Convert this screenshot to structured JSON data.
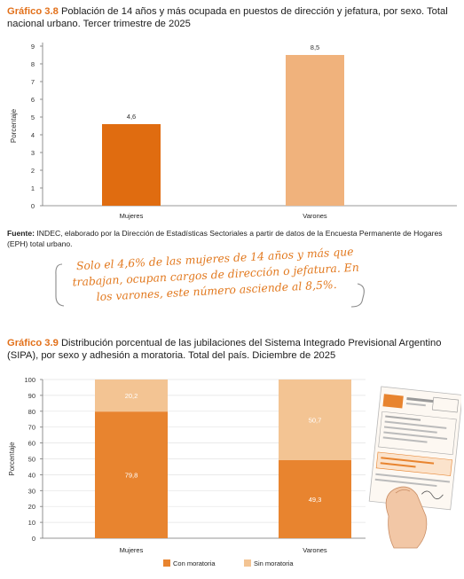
{
  "chart1": {
    "title_num": "Gráfico 3.8",
    "title_text": "Población de 14 años y más ocupada en puestos de dirección y jefatura, por sexo. Total nacional urbano. Tercer trimestre de 2025"
  },
  "source": {
    "label": "Fuente:",
    "text": "INDEC, elaborado por la Dirección de Estadísticas Sectoriales a partir de datos de la Encuesta Permanente de Hogares (EPH) total urbano."
  },
  "note": {
    "text": "Solo el 4,6% de las mujeres de 14 años y más que trabajan, ocupan cargos de dirección o jefatura. En los varones, este número asciende al 8,5%."
  },
  "chart2": {
    "title_num": "Gráfico 3.9",
    "title_text": "Distribución porcentual de las jubilaciones del Sistema Integrado Previsional Argentino (SIPA), por sexo y adhesión a moratoria. Total del país. Diciembre de 2025"
  },
  "colors": {
    "dark_orange": "#e06c10",
    "light_orange": "#f0b27c",
    "stack_dark": "#e8842f",
    "stack_light": "#f3c493",
    "accent": "#e2701a"
  },
  "chart_data": [
    {
      "type": "bar",
      "title": "Población de 14 años y más ocupada en puestos de dirección y jefatura, por sexo. Total nacional urbano. Tercer trimestre de 2025",
      "categories": [
        "Mujeres",
        "Varones"
      ],
      "values": [
        4.6,
        8.5
      ],
      "value_labels": [
        "4,6",
        "8,5"
      ],
      "xlabel": "",
      "ylabel": "Porcentaje",
      "ylim": [
        0,
        9
      ],
      "yticks": [
        0,
        1,
        2,
        3,
        4,
        5,
        6,
        7,
        8,
        9
      ],
      "grid": false,
      "legend": "none"
    },
    {
      "type": "bar",
      "stacked": true,
      "title": "Distribución porcentual de las jubilaciones del Sistema Integrado Previsional Argentino (SIPA), por sexo y adhesión a moratoria. Total del país. Diciembre de 2025",
      "categories": [
        "Mujeres",
        "Varones"
      ],
      "series": [
        {
          "name": "Con moratoria",
          "values": [
            79.8,
            49.3
          ],
          "labels": [
            "79,8",
            "49,3"
          ]
        },
        {
          "name": "Sin moratoria",
          "values": [
            20.2,
            50.7
          ],
          "labels": [
            "20,2",
            "50,7"
          ]
        }
      ],
      "xlabel": "",
      "ylabel": "Porcentaje",
      "ylim": [
        0,
        100
      ],
      "yticks": [
        0,
        10,
        20,
        30,
        40,
        50,
        60,
        70,
        80,
        90,
        100
      ],
      "grid": true,
      "legend": "bottom"
    }
  ]
}
